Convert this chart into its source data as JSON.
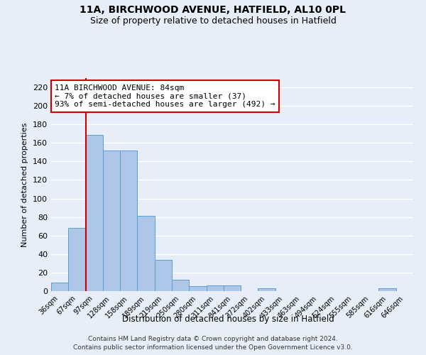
{
  "title": "11A, BIRCHWOOD AVENUE, HATFIELD, AL10 0PL",
  "subtitle": "Size of property relative to detached houses in Hatfield",
  "xlabel": "Distribution of detached houses by size in Hatfield",
  "ylabel": "Number of detached properties",
  "categories": [
    "36sqm",
    "67sqm",
    "97sqm",
    "128sqm",
    "158sqm",
    "189sqm",
    "219sqm",
    "250sqm",
    "280sqm",
    "311sqm",
    "341sqm",
    "372sqm",
    "402sqm",
    "433sqm",
    "463sqm",
    "494sqm",
    "524sqm",
    "555sqm",
    "585sqm",
    "616sqm",
    "646sqm"
  ],
  "values": [
    9,
    68,
    169,
    152,
    152,
    81,
    34,
    12,
    5,
    6,
    6,
    0,
    3,
    0,
    0,
    0,
    0,
    0,
    0,
    3,
    0
  ],
  "bar_color": "#aec6e8",
  "bar_edge_color": "#5a9fd4",
  "background_color": "#e8eef8",
  "grid_color": "#ffffff",
  "vline_x": 1.5,
  "vline_color": "#cc0000",
  "annotation_text": "11A BIRCHWOOD AVENUE: 84sqm\n← 7% of detached houses are smaller (37)\n93% of semi-detached houses are larger (492) →",
  "annotation_box_color": "#ffffff",
  "annotation_box_edge": "#cc0000",
  "ylim": [
    0,
    230
  ],
  "yticks": [
    0,
    20,
    40,
    60,
    80,
    100,
    120,
    140,
    160,
    180,
    200,
    220
  ],
  "footer_line1": "Contains HM Land Registry data © Crown copyright and database right 2024.",
  "footer_line2": "Contains public sector information licensed under the Open Government Licence v3.0."
}
